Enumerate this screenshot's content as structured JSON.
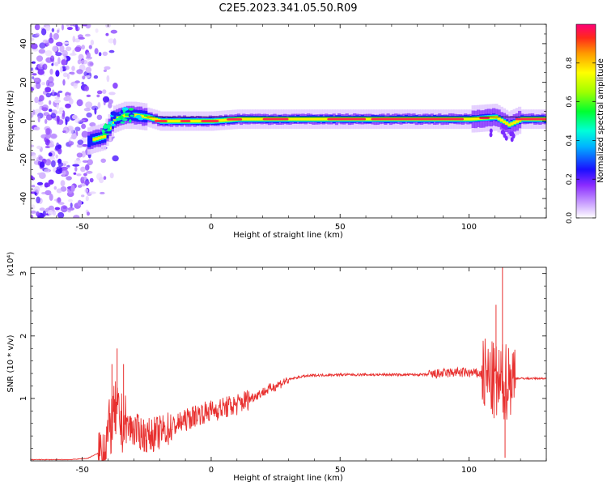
{
  "title": "C2E5.2023.341.05.50.R09",
  "colors": {
    "snr_line": "#e8302f",
    "ridge": "#ff2a45",
    "background": "#ffffff",
    "axis": "#000000"
  },
  "chart_data": [
    {
      "type": "heatmap",
      "title": "C2E5.2023.341.05.50.R09",
      "xlabel": "Height of straight line (km)",
      "ylabel": "Frequency (Hz)",
      "xlim": [
        -70,
        130
      ],
      "ylim": [
        -50,
        50
      ],
      "x_ticks": [
        -50,
        0,
        50,
        100
      ],
      "y_ticks": [
        -40,
        -20,
        0,
        20,
        40
      ],
      "x_tick_labels": [
        "-50",
        "0",
        "50",
        "100"
      ],
      "y_tick_labels": [
        "-40",
        "-20",
        "0",
        "20",
        "40"
      ],
      "colorbar": {
        "label": "Normalized spectral amplitude",
        "range": [
          0,
          1
        ],
        "ticks": [
          0.0,
          0.2,
          0.4,
          0.6,
          0.8
        ],
        "tick_labels": [
          "0.0",
          "0.2",
          "0.4",
          "0.6",
          "0.8"
        ],
        "colormap": [
          "#ffffff",
          "#9a30ff",
          "#1414ff",
          "#00e5ff",
          "#00ff33",
          "#ffff00",
          "#ff7800",
          "#ff0066"
        ]
      },
      "noise_region_x": [
        -70,
        -43
      ],
      "ridge_frequency": [
        {
          "x": -50,
          "y": -11
        },
        {
          "x": -42,
          "y": -8
        },
        {
          "x": -38,
          "y": 1
        },
        {
          "x": -34,
          "y": 3
        },
        {
          "x": -30,
          "y": 3
        },
        {
          "x": -25,
          "y": 2
        },
        {
          "x": -20,
          "y": 0
        },
        {
          "x": -10,
          "y": 0
        },
        {
          "x": 0,
          "y": 0
        },
        {
          "x": 10,
          "y": 1
        },
        {
          "x": 30,
          "y": 1
        },
        {
          "x": 50,
          "y": 1
        },
        {
          "x": 80,
          "y": 1
        },
        {
          "x": 100,
          "y": 1
        },
        {
          "x": 110,
          "y": 2
        },
        {
          "x": 115,
          "y": -2
        },
        {
          "x": 120,
          "y": 1
        },
        {
          "x": 130,
          "y": 1
        }
      ]
    },
    {
      "type": "line",
      "xlabel": "Height of straight line (km)",
      "ylabel": "SNR (10 * v/v)",
      "y_multiplier": "(x10⁴)",
      "xlim": [
        -70,
        130
      ],
      "ylim": [
        0,
        3.1
      ],
      "x_ticks": [
        -50,
        0,
        50,
        100
      ],
      "y_ticks": [
        1,
        2,
        3
      ],
      "x_tick_labels": [
        "-50",
        "0",
        "50",
        "100"
      ],
      "y_tick_labels": [
        "1",
        "2",
        "3"
      ],
      "series": [
        {
          "points": [
            {
              "x": -70,
              "y": 0.02
            },
            {
              "x": -55,
              "y": 0.02
            },
            {
              "x": -48,
              "y": 0.04
            },
            {
              "x": -44,
              "y": 0.12
            },
            {
              "x": -42,
              "y": 0.2
            },
            {
              "x": -39,
              "y": 0.55
            },
            {
              "x": -37,
              "y": 0.8
            },
            {
              "x": -35,
              "y": 0.6
            },
            {
              "x": -30,
              "y": 0.5
            },
            {
              "x": -25,
              "y": 0.4
            },
            {
              "x": -20,
              "y": 0.45
            },
            {
              "x": -15,
              "y": 0.55
            },
            {
              "x": -10,
              "y": 0.65
            },
            {
              "x": -5,
              "y": 0.75
            },
            {
              "x": 0,
              "y": 0.8
            },
            {
              "x": 5,
              "y": 0.85
            },
            {
              "x": 10,
              "y": 0.9
            },
            {
              "x": 15,
              "y": 1.0
            },
            {
              "x": 20,
              "y": 1.1
            },
            {
              "x": 25,
              "y": 1.2
            },
            {
              "x": 30,
              "y": 1.3
            },
            {
              "x": 35,
              "y": 1.35
            },
            {
              "x": 40,
              "y": 1.37
            },
            {
              "x": 50,
              "y": 1.38
            },
            {
              "x": 60,
              "y": 1.38
            },
            {
              "x": 70,
              "y": 1.38
            },
            {
              "x": 80,
              "y": 1.38
            },
            {
              "x": 85,
              "y": 1.38
            },
            {
              "x": 95,
              "y": 1.42
            },
            {
              "x": 104,
              "y": 1.4
            },
            {
              "x": 108,
              "y": 1.3
            },
            {
              "x": 112,
              "y": 1.2
            },
            {
              "x": 116,
              "y": 1.33
            },
            {
              "x": 120,
              "y": 1.32
            },
            {
              "x": 130,
              "y": 1.32
            }
          ]
        }
      ],
      "spikes": [
        {
          "x": -38.5,
          "y": 1.55
        },
        {
          "x": -36.5,
          "y": 1.8
        },
        {
          "x": -34,
          "y": 1.55
        },
        {
          "x": 110.5,
          "y": 2.5
        },
        {
          "x": 113,
          "y": 3.1
        },
        {
          "x": 114,
          "y": 0.05
        }
      ]
    }
  ]
}
